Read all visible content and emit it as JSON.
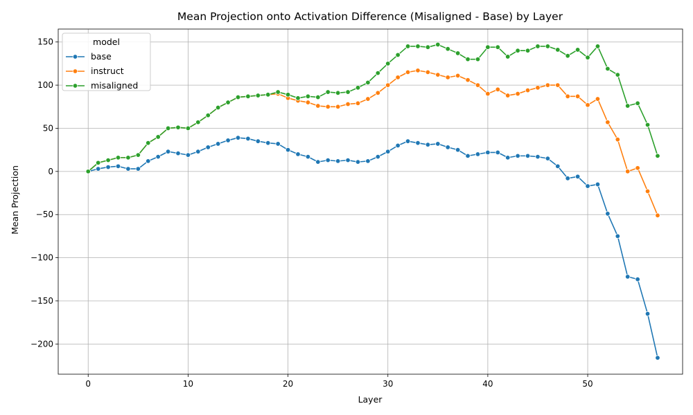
{
  "chart_data": {
    "type": "line",
    "title": "Mean Projection onto Activation Difference (Misaligned - Base) by Layer",
    "xlabel": "Layer",
    "ylabel": "Mean Projection",
    "xlim": [
      -3,
      59.5
    ],
    "ylim": [
      -235,
      165
    ],
    "xticks": [
      0,
      10,
      20,
      30,
      40,
      50
    ],
    "yticks": [
      -200,
      -150,
      -100,
      -50,
      0,
      50,
      100,
      150
    ],
    "ytick_labels": [
      "−200",
      "−150",
      "−100",
      "−50",
      "0",
      "50",
      "100",
      "150"
    ],
    "grid": true,
    "legend": {
      "title": "model",
      "placement": "top-left"
    },
    "x": [
      0,
      1,
      2,
      3,
      4,
      5,
      6,
      7,
      8,
      9,
      10,
      11,
      12,
      13,
      14,
      15,
      16,
      17,
      18,
      19,
      20,
      21,
      22,
      23,
      24,
      25,
      26,
      27,
      28,
      29,
      30,
      31,
      32,
      33,
      34,
      35,
      36,
      37,
      38,
      39,
      40,
      41,
      42,
      43,
      44,
      45,
      46,
      47,
      48,
      49,
      50,
      51,
      52,
      53,
      54,
      55,
      56,
      57
    ],
    "series": [
      {
        "name": "base",
        "color": "#1f77b4",
        "values": [
          0,
          3,
          5,
          6,
          3,
          3,
          12,
          17,
          23,
          21,
          19,
          23,
          28,
          32,
          36,
          39,
          38,
          35,
          33,
          32,
          25,
          20,
          17,
          11,
          13,
          12,
          13,
          11,
          12,
          17,
          23,
          30,
          35,
          33,
          31,
          32,
          28,
          25,
          18,
          20,
          22,
          22,
          16,
          18,
          18,
          17,
          15,
          6,
          -8,
          -6,
          -17,
          -15,
          -49,
          -75,
          -122,
          -125,
          -165,
          -216
        ]
      },
      {
        "name": "instruct",
        "color": "#ff7f0e",
        "values": [
          0,
          10,
          13,
          16,
          16,
          19,
          33,
          40,
          50,
          51,
          50,
          57,
          65,
          74,
          80,
          86,
          87,
          88,
          89,
          90,
          85,
          82,
          80,
          76,
          75,
          75,
          78,
          79,
          84,
          91,
          100,
          109,
          115,
          117,
          115,
          112,
          109,
          111,
          106,
          100,
          90,
          95,
          88,
          90,
          94,
          97,
          100,
          100,
          87,
          87,
          77,
          84,
          57,
          37,
          0,
          4,
          -23,
          -51
        ]
      },
      {
        "name": "misaligned",
        "color": "#2ca02c",
        "values": [
          0,
          10,
          13,
          16,
          16,
          19,
          33,
          40,
          50,
          51,
          50,
          57,
          65,
          74,
          80,
          86,
          87,
          88,
          89,
          92,
          89,
          85,
          87,
          86,
          92,
          91,
          92,
          97,
          103,
          114,
          125,
          135,
          145,
          145,
          144,
          147,
          142,
          137,
          130,
          130,
          144,
          144,
          133,
          140,
          140,
          145,
          145,
          141,
          134,
          141,
          132,
          145,
          119,
          112,
          76,
          79,
          54,
          18
        ]
      }
    ]
  }
}
